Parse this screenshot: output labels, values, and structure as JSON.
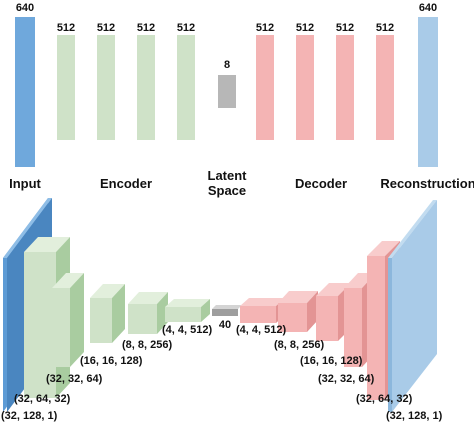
{
  "top": {
    "input": {
      "label": "Input",
      "size": "640"
    },
    "encoder": {
      "label": "Encoder",
      "sizes": [
        "512",
        "512",
        "512",
        "512"
      ]
    },
    "latent": {
      "label_line1": "Latent",
      "label_line2": "Space",
      "size": "8"
    },
    "decoder": {
      "label": "Decoder",
      "sizes": [
        "512",
        "512",
        "512",
        "512"
      ]
    },
    "reconstruction": {
      "label": "Reconstruction",
      "size": "640"
    }
  },
  "bottom": {
    "encoder_dims": [
      "(32, 128, 1)",
      "(32, 64, 32)",
      "(32, 32, 64)",
      "(16, 16, 128)",
      "(8, 8, 256)",
      "(4, 4, 512)"
    ],
    "latent_size": "40",
    "decoder_dims": [
      "(4, 4, 512)",
      "(8, 8, 256)",
      "(16, 16, 128)",
      "(32, 32, 64)",
      "(32, 64, 32)",
      "(32, 128, 1)"
    ]
  },
  "colors": {
    "input": "#6fa8dc",
    "reconstruction": "#a9cbe8",
    "encoder": "#cfe2c8",
    "decoder": "#f4b4b4",
    "latent": "#b7b7b7"
  }
}
